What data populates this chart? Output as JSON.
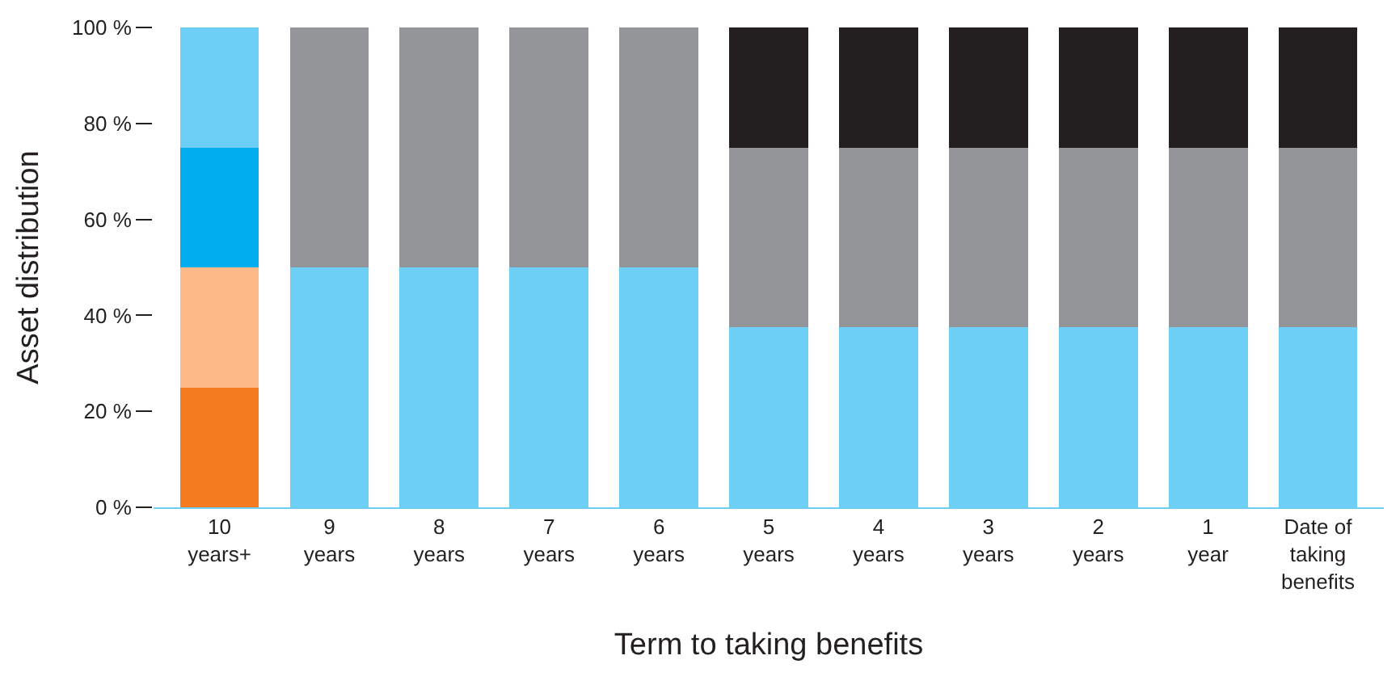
{
  "chart_data": {
    "type": "bar",
    "stacked": true,
    "xlabel": "Term to taking benefits",
    "ylabel": "Asset distribution",
    "categories": [
      "10\nyears+",
      "9\nyears",
      "8\nyears",
      "7\nyears",
      "6\nyears",
      "5\nyears",
      "4\nyears",
      "3\nyears",
      "2\nyears",
      "1\nyear",
      "Date of\ntaking\nbenefits"
    ],
    "series": [
      {
        "colors": [
          "#f47b20",
          "#6dcff6",
          "#6dcff6",
          "#6dcff6",
          "#6dcff6",
          "#6dcff6",
          "#6dcff6",
          "#6dcff6",
          "#6dcff6",
          "#6dcff6",
          "#6dcff6"
        ],
        "values": [
          25,
          50,
          50,
          50,
          50,
          37.5,
          37.5,
          37.5,
          37.5,
          37.5,
          37.5
        ]
      },
      {
        "colors": [
          "#fbb987",
          "#939598",
          "#939598",
          "#939598",
          "#939598",
          "#939598",
          "#939598",
          "#939598",
          "#939598",
          "#939598",
          "#939598"
        ],
        "values": [
          25,
          50,
          50,
          50,
          50,
          37.5,
          37.5,
          37.5,
          37.5,
          37.5,
          37.5
        ]
      },
      {
        "colors": [
          "#00aeef",
          "#231f20",
          "#231f20",
          "#231f20",
          "#231f20",
          "#231f20",
          "#231f20",
          "#231f20",
          "#231f20",
          "#231f20",
          "#231f20"
        ],
        "values": [
          25,
          null,
          null,
          null,
          null,
          25,
          25,
          25,
          25,
          25,
          25
        ]
      },
      {
        "colors": [
          "#6dcff6",
          "#231f20",
          "#231f20",
          "#231f20",
          "#231f20",
          "#231f20",
          "#231f20",
          "#231f20",
          "#231f20",
          "#231f20",
          "#231f20"
        ],
        "values": [
          25,
          null,
          null,
          null,
          null,
          null,
          null,
          null,
          null,
          null,
          null
        ]
      }
    ],
    "ylim": [
      0,
      100
    ],
    "yticks": [
      {
        "value": 0,
        "label": "0 %"
      },
      {
        "value": 20,
        "label": "20 %"
      },
      {
        "value": 40,
        "label": "40 %"
      },
      {
        "value": 60,
        "label": "60 %"
      },
      {
        "value": 80,
        "label": "80 %"
      },
      {
        "value": 100,
        "label": "100 %"
      }
    ]
  }
}
